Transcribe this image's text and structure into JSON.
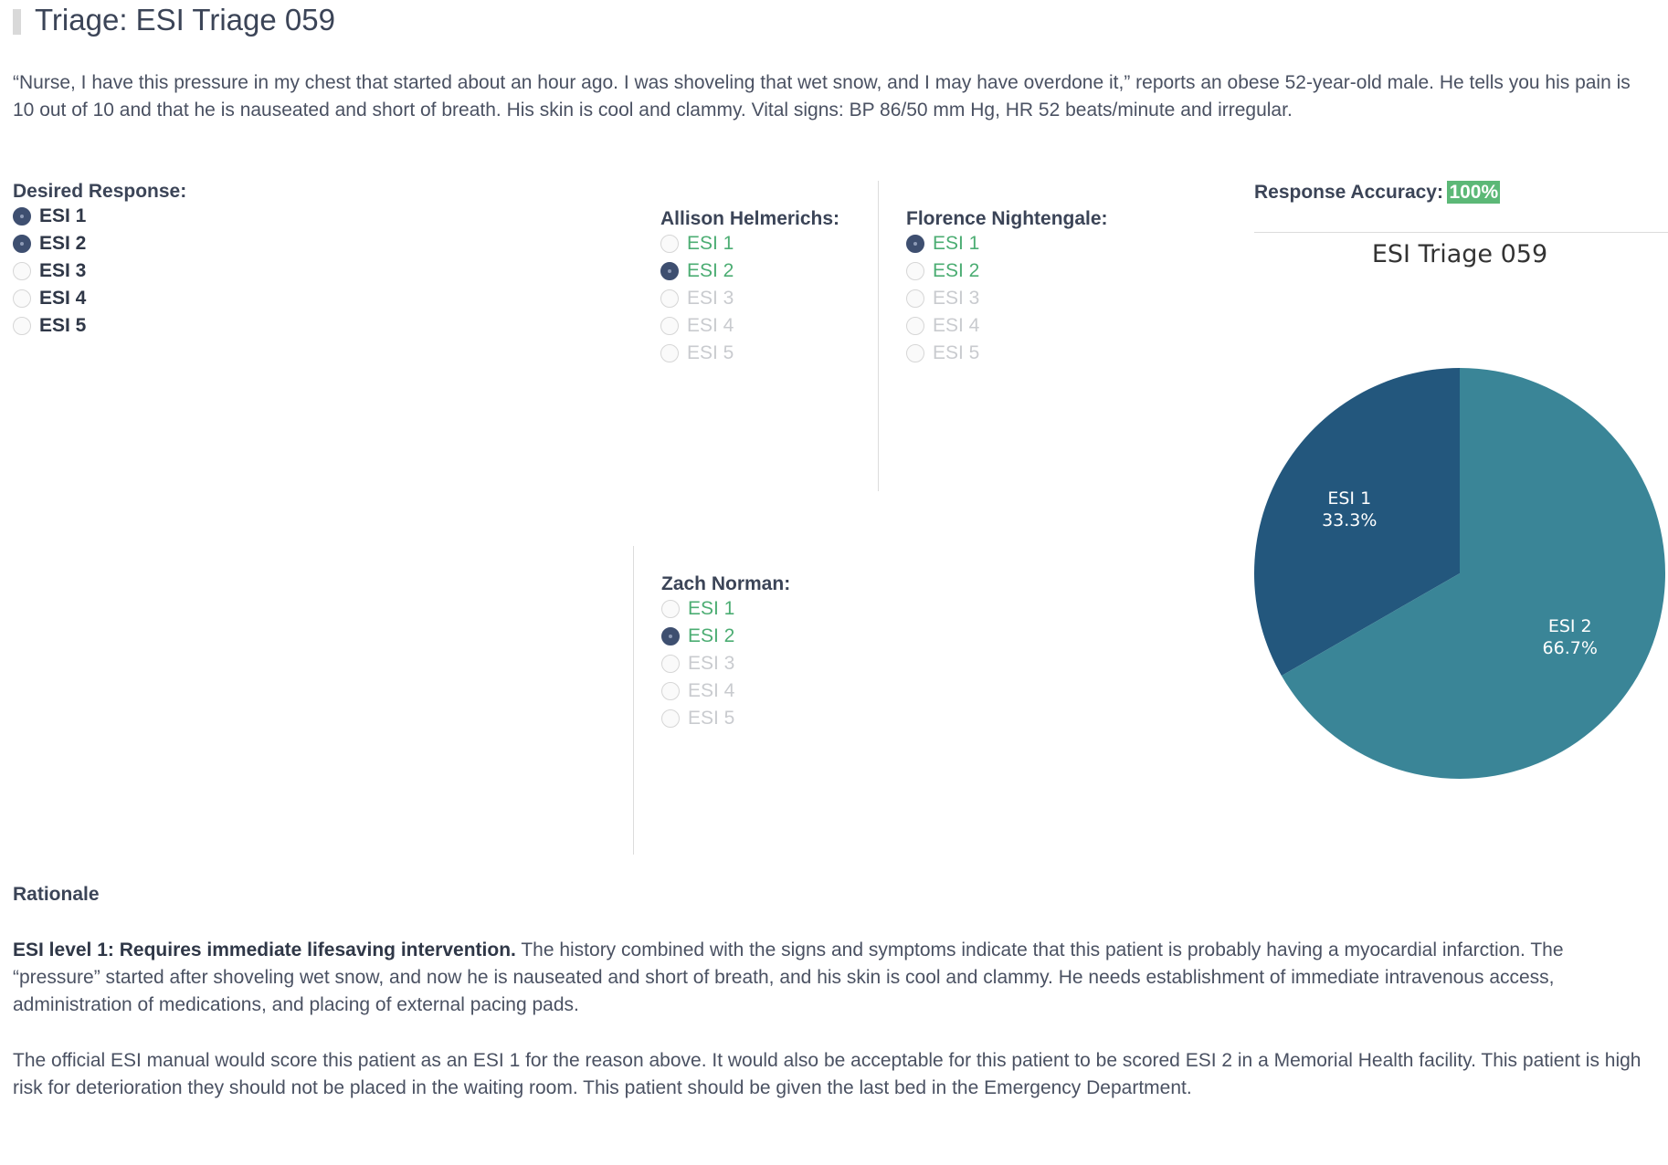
{
  "page": {
    "title": "Triage: ESI Triage 059",
    "scenario": "“Nurse, I have this pressure in my chest that started about an hour ago. I was shoveling that wet snow, and I may have overdone it,” reports an obese 52-year-old male. He tells you his pain is 10 out of 10 and that he is nauseated and short of breath. His skin is cool and clammy. Vital signs: BP 86/50 mm Hg, HR 52 beats/minute and irregular."
  },
  "desired": {
    "label": "Desired Response:",
    "options": [
      {
        "label": "ESI 1",
        "selected": true
      },
      {
        "label": "ESI 2",
        "selected": true
      },
      {
        "label": "ESI 3",
        "selected": false
      },
      {
        "label": "ESI 4",
        "selected": false
      },
      {
        "label": "ESI 5",
        "selected": false
      }
    ]
  },
  "responders": [
    {
      "name": "Allison Helmerichs:",
      "options": [
        {
          "label": "ESI 1",
          "selected": false,
          "correct": true
        },
        {
          "label": "ESI 2",
          "selected": true,
          "correct": true
        },
        {
          "label": "ESI 3",
          "selected": false,
          "correct": false
        },
        {
          "label": "ESI 4",
          "selected": false,
          "correct": false
        },
        {
          "label": "ESI 5",
          "selected": false,
          "correct": false
        }
      ]
    },
    {
      "name": "Florence Nightengale:",
      "options": [
        {
          "label": "ESI 1",
          "selected": true,
          "correct": true
        },
        {
          "label": "ESI 2",
          "selected": false,
          "correct": true
        },
        {
          "label": "ESI 3",
          "selected": false,
          "correct": false
        },
        {
          "label": "ESI 4",
          "selected": false,
          "correct": false
        },
        {
          "label": "ESI 5",
          "selected": false,
          "correct": false
        }
      ]
    },
    {
      "name": "Zach Norman:",
      "options": [
        {
          "label": "ESI 1",
          "selected": false,
          "correct": true
        },
        {
          "label": "ESI 2",
          "selected": true,
          "correct": true
        },
        {
          "label": "ESI 3",
          "selected": false,
          "correct": false
        },
        {
          "label": "ESI 4",
          "selected": false,
          "correct": false
        },
        {
          "label": "ESI 5",
          "selected": false,
          "correct": false
        }
      ]
    }
  ],
  "accuracy": {
    "label": "Response Accuracy:",
    "value": "100%",
    "badge_color": "#5cb877"
  },
  "chart_data": {
    "type": "pie",
    "title": "ESI Triage 059",
    "slices": [
      {
        "label": "ESI 1",
        "value": 33.3,
        "display": "33.3%",
        "color": "#23577d"
      },
      {
        "label": "ESI 2",
        "value": 66.7,
        "display": "66.7%",
        "color": "#3a8597"
      }
    ],
    "start": "12 o'clock",
    "direction": "counter-clockwise for ESI 1, clockwise for ESI 2"
  },
  "rationale": {
    "heading": "Rationale",
    "p1_bold": "ESI level 1: Requires immediate lifesaving intervention.",
    "p1_text": " The history combined with the signs and symptoms indicate that this patient is probably having a myocardial infarction. The “pressure” started after shoveling wet snow, and now he is nauseated and short of breath, and his skin is cool and clammy. He needs establishment of immediate intravenous access, administration of medications, and placing of external pacing pads.",
    "p2": "The official ESI manual would score this patient as an ESI 1 for the reason above. It would also be acceptable for this patient to be scored ESI 2 in a Memorial Health facility. This patient is high risk for deterioration they should not be placed in the waiting room. This patient should be given the last bed in the Emergency Department."
  }
}
